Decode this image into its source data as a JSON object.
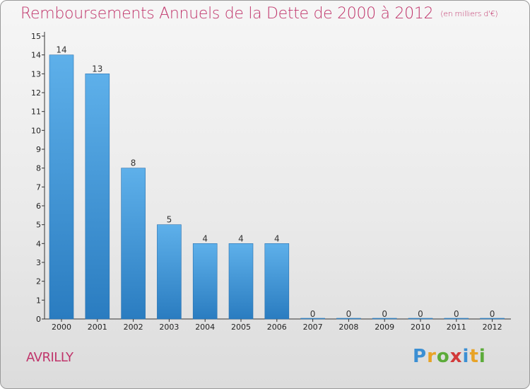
{
  "chart_data": {
    "type": "bar",
    "title": "Remboursements Annuels de la Dette de 2000 à 2012",
    "subtitle": "(en milliers d'€)",
    "categories": [
      "2000",
      "2001",
      "2002",
      "2003",
      "2004",
      "2005",
      "2006",
      "2007",
      "2008",
      "2009",
      "2010",
      "2011",
      "2012"
    ],
    "values": [
      14,
      13,
      8,
      5,
      4,
      4,
      4,
      0,
      0,
      0,
      0,
      0,
      0
    ],
    "ylim": [
      0,
      15
    ],
    "yticks": [
      0,
      1,
      2,
      3,
      4,
      5,
      6,
      7,
      8,
      9,
      10,
      11,
      12,
      13,
      14,
      15
    ],
    "xlabel": "",
    "ylabel": "",
    "grid": false,
    "bar_color": "#4a9ee0",
    "title_color": "#c0356b"
  },
  "footer": {
    "town": "AVRILLY",
    "logo_letters": [
      "P",
      "r",
      "o",
      "x",
      "i",
      "t",
      "i"
    ]
  }
}
